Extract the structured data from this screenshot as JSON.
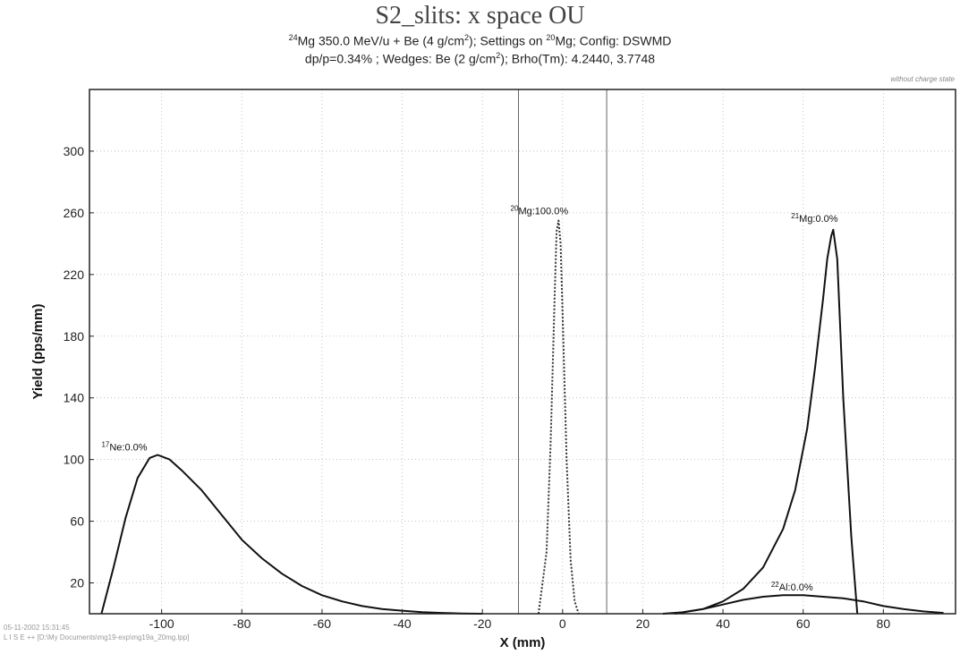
{
  "chart_data": {
    "type": "line",
    "title": "S2_slits:  x space OU",
    "subtitle_1": {
      "a_mass": "24",
      "a_rest": "Mg 350.0 MeV/u + Be (4 g/cm",
      "a_exp": "2",
      "b_rest": "); Settings on ",
      "b_mass": "20",
      "c_rest": "Mg;  Config: DSWMD"
    },
    "subtitle_2": {
      "a": "dp/p=0.34% ; Wedges: Be (2 g/cm",
      "a_exp": "2",
      "b": "); Brho(Tm): 4.2440, 3.7748"
    },
    "corner_note": "without charge state",
    "xlabel": "X (mm)",
    "ylabel": "Yield (pps/mm)",
    "xlim": [
      -118,
      98
    ],
    "ylim": [
      0,
      340
    ],
    "x_ticks": [
      -100,
      -80,
      -60,
      -40,
      -20,
      0,
      20,
      40,
      60,
      80
    ],
    "y_ticks": [
      20,
      60,
      100,
      140,
      180,
      220,
      260,
      300
    ],
    "grid": true,
    "x_ticks_text": [
      "-100",
      "-80",
      "-60",
      "-40",
      "-20",
      "0",
      "20",
      "40",
      "60",
      "80"
    ],
    "y_ticks_text": [
      "20",
      "60",
      "100",
      "140",
      "180",
      "220",
      "260",
      "300"
    ],
    "slit_lines_x": [
      -11,
      11
    ],
    "series": [
      {
        "mass": "17",
        "symbol": "Ne",
        "pct": ":0.0%",
        "color": "#111111",
        "dash": "",
        "x": [
          -115,
          -112,
          -109,
          -106,
          -103,
          -101,
          -98,
          -95,
          -90,
          -85,
          -80,
          -75,
          -70,
          -65,
          -60,
          -55,
          -50,
          -45,
          -40,
          -35,
          -30,
          -25,
          -20
        ],
        "y": [
          0,
          30,
          62,
          88,
          101,
          103,
          100,
          93,
          80,
          64,
          48,
          36,
          26,
          18,
          12,
          8,
          5,
          3,
          2,
          1,
          0.5,
          0.2,
          0
        ]
      },
      {
        "mass": "20",
        "symbol": "Mg",
        "pct": ":100.0%",
        "color": "#333333",
        "dash": "2,2",
        "x": [
          -6,
          -4,
          -3,
          -2,
          -1.5,
          -1,
          -0.5,
          0,
          1,
          2,
          3,
          4
        ],
        "y": [
          0,
          40,
          110,
          205,
          248,
          255,
          240,
          195,
          100,
          35,
          8,
          0
        ]
      },
      {
        "mass": "21",
        "symbol": "Mg",
        "pct": ":0.0%",
        "color": "#111111",
        "dash": "",
        "x": [
          28,
          35,
          40,
          45,
          50,
          55,
          58,
          61,
          63,
          65,
          66,
          67,
          67.5,
          68.5,
          70,
          72,
          73.5
        ],
        "y": [
          0,
          3,
          8,
          16,
          30,
          55,
          80,
          120,
          160,
          205,
          230,
          245,
          249,
          230,
          140,
          50,
          0
        ]
      },
      {
        "mass": "22",
        "symbol": "Al",
        "pct": ":0.0%",
        "color": "#111111",
        "dash": "",
        "x": [
          25,
          30,
          35,
          40,
          45,
          50,
          55,
          60,
          65,
          70,
          75,
          80,
          85,
          90,
          95
        ],
        "y": [
          0,
          1,
          3,
          6,
          9,
          11,
          12,
          12,
          11,
          10,
          8,
          5,
          3,
          1.5,
          0.5
        ]
      }
    ],
    "labels": [
      {
        "series": 0,
        "x": -115,
        "y": 106
      },
      {
        "series": 1,
        "x": -13,
        "y": 259
      },
      {
        "series": 2,
        "x": 57,
        "y": 254
      },
      {
        "series": 3,
        "x": 52,
        "y": 15
      }
    ]
  },
  "footer": {
    "line1": "05-11-2002  15:31:45",
    "line2": "L I S E ++  [D:\\My Documents\\mg19-exp\\mg19a_20mg.lpp]"
  }
}
